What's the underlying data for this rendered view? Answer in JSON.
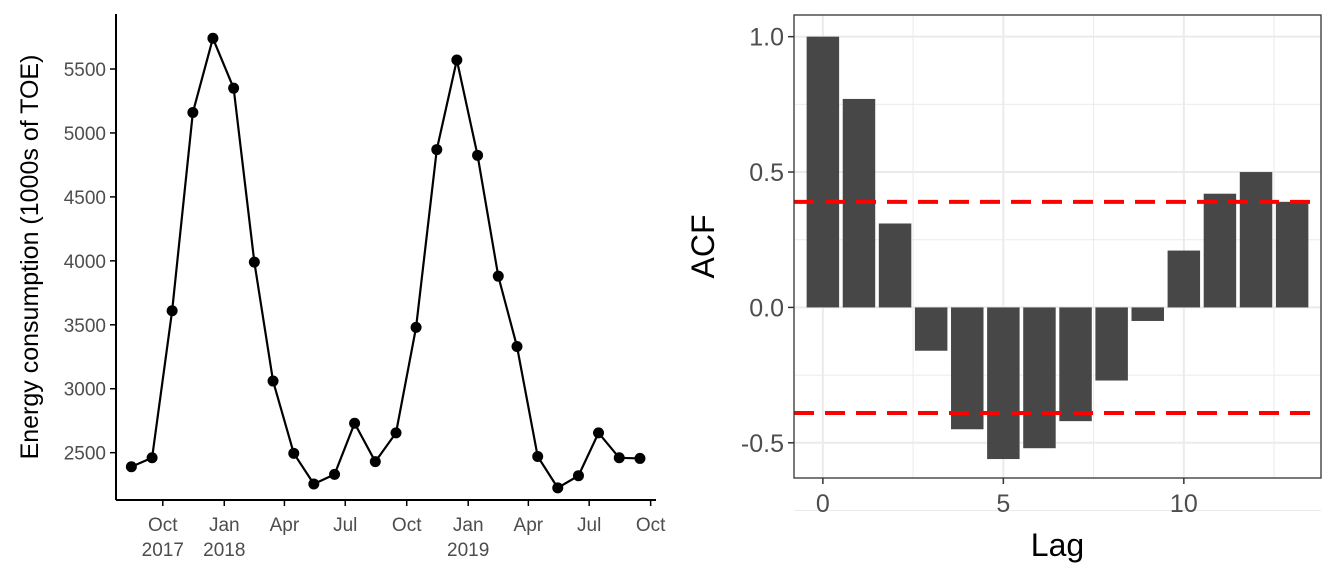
{
  "chart_data": [
    {
      "type": "line",
      "title": "",
      "xlabel": "",
      "ylabel": "Energy consumption (1000s of TOE)",
      "xlim": [
        "2017-07-23",
        "2019-10-09"
      ],
      "ylim": [
        2130,
        5930
      ],
      "grid": false,
      "series": [
        {
          "x": [
            "2017-08",
            "2017-09",
            "2017-10",
            "2017-11",
            "2017-12",
            "2018-01",
            "2018-02",
            "2018-03",
            "2018-04",
            "2018-05",
            "2018-06",
            "2018-07",
            "2018-08",
            "2018-09",
            "2018-10",
            "2018-11",
            "2018-12",
            "2019-01",
            "2019-02",
            "2019-03",
            "2019-04",
            "2019-05",
            "2019-06",
            "2019-07",
            "2019-08",
            "2019-09"
          ],
          "values": [
            2390,
            2460,
            3610,
            5160,
            5740,
            5350,
            3990,
            3060,
            2495,
            2255,
            2330,
            2730,
            2430,
            2655,
            3480,
            4870,
            5570,
            4825,
            3880,
            3330,
            2470,
            2225,
            2320,
            2655,
            2460,
            2455
          ]
        }
      ],
      "yticks": [
        2500,
        3000,
        3500,
        4000,
        4500,
        5000,
        5500
      ],
      "xticks": [
        {
          "date": "2017-10-01",
          "label": "Oct",
          "sublabel": "2017"
        },
        {
          "date": "2018-01-01",
          "label": "Jan",
          "sublabel": "2018"
        },
        {
          "date": "2018-04-01",
          "label": "Apr",
          "sublabel": ""
        },
        {
          "date": "2018-07-01",
          "label": "Jul",
          "sublabel": ""
        },
        {
          "date": "2018-10-01",
          "label": "Oct",
          "sublabel": ""
        },
        {
          "date": "2019-01-01",
          "label": "Jan",
          "sublabel": "2019"
        },
        {
          "date": "2019-04-01",
          "label": "Apr",
          "sublabel": ""
        },
        {
          "date": "2019-07-01",
          "label": "Jul",
          "sublabel": ""
        },
        {
          "date": "2019-10-01",
          "label": "Oct",
          "sublabel": ""
        }
      ]
    },
    {
      "type": "bar",
      "title": "",
      "xlabel": "Lag",
      "ylabel": "ACF",
      "categories": [
        0,
        1,
        2,
        3,
        4,
        5,
        6,
        7,
        8,
        9,
        10,
        11,
        12,
        13
      ],
      "values": [
        1.0,
        0.77,
        0.31,
        -0.16,
        -0.45,
        -0.56,
        -0.52,
        -0.42,
        -0.27,
        -0.05,
        0.21,
        0.42,
        0.5,
        0.39
      ],
      "xlim": [
        -0.8,
        13.8
      ],
      "ylim": [
        -0.63,
        1.08
      ],
      "grid": true,
      "xticks": [
        0,
        5,
        10
      ],
      "yticks": [
        1.0,
        0.5,
        0.0,
        -0.5
      ],
      "ytick_labels": [
        "1.0",
        "0.5",
        "0.0",
        "-0.5"
      ],
      "confidence_bounds": [
        0.39,
        -0.39
      ],
      "colors": {
        "bars": "#474747",
        "bounds": "#ff0000",
        "grid": "#ebebeb",
        "panel_border": "#333333"
      }
    }
  ]
}
